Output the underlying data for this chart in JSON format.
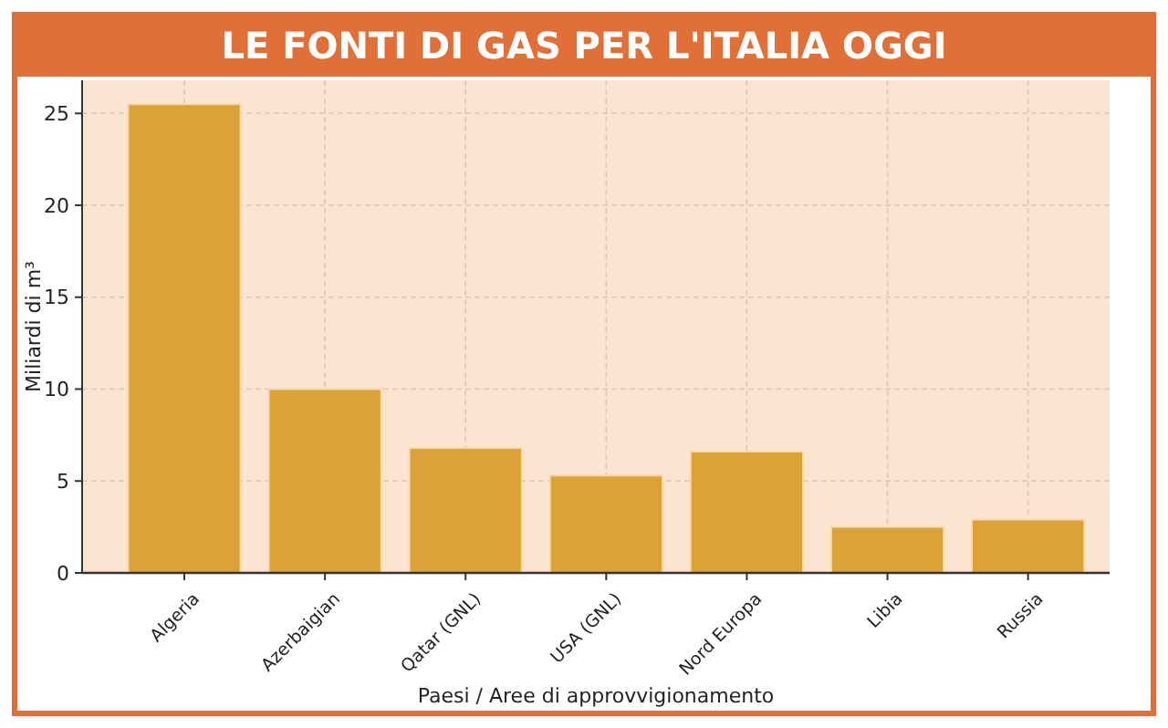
{
  "chart_data": {
    "type": "bar",
    "title": "LE FONTI DI GAS PER L'ITALIA OGGI",
    "xlabel": "Paesi / Aree di approvvigionamento",
    "ylabel": "Miliardi di m³",
    "categories": [
      "Algeria",
      "Azerbaigian",
      "Qatar (GNL)",
      "USA (GNL)",
      "Nord Europa",
      "Libia",
      "Russia"
    ],
    "values": [
      25.5,
      10,
      6.8,
      5.3,
      6.6,
      2.5,
      2.9
    ],
    "color": "#dba237",
    "ylim": [
      0,
      26.8
    ],
    "yticks": [
      0,
      5,
      10,
      15,
      20,
      25
    ],
    "grid": true
  }
}
